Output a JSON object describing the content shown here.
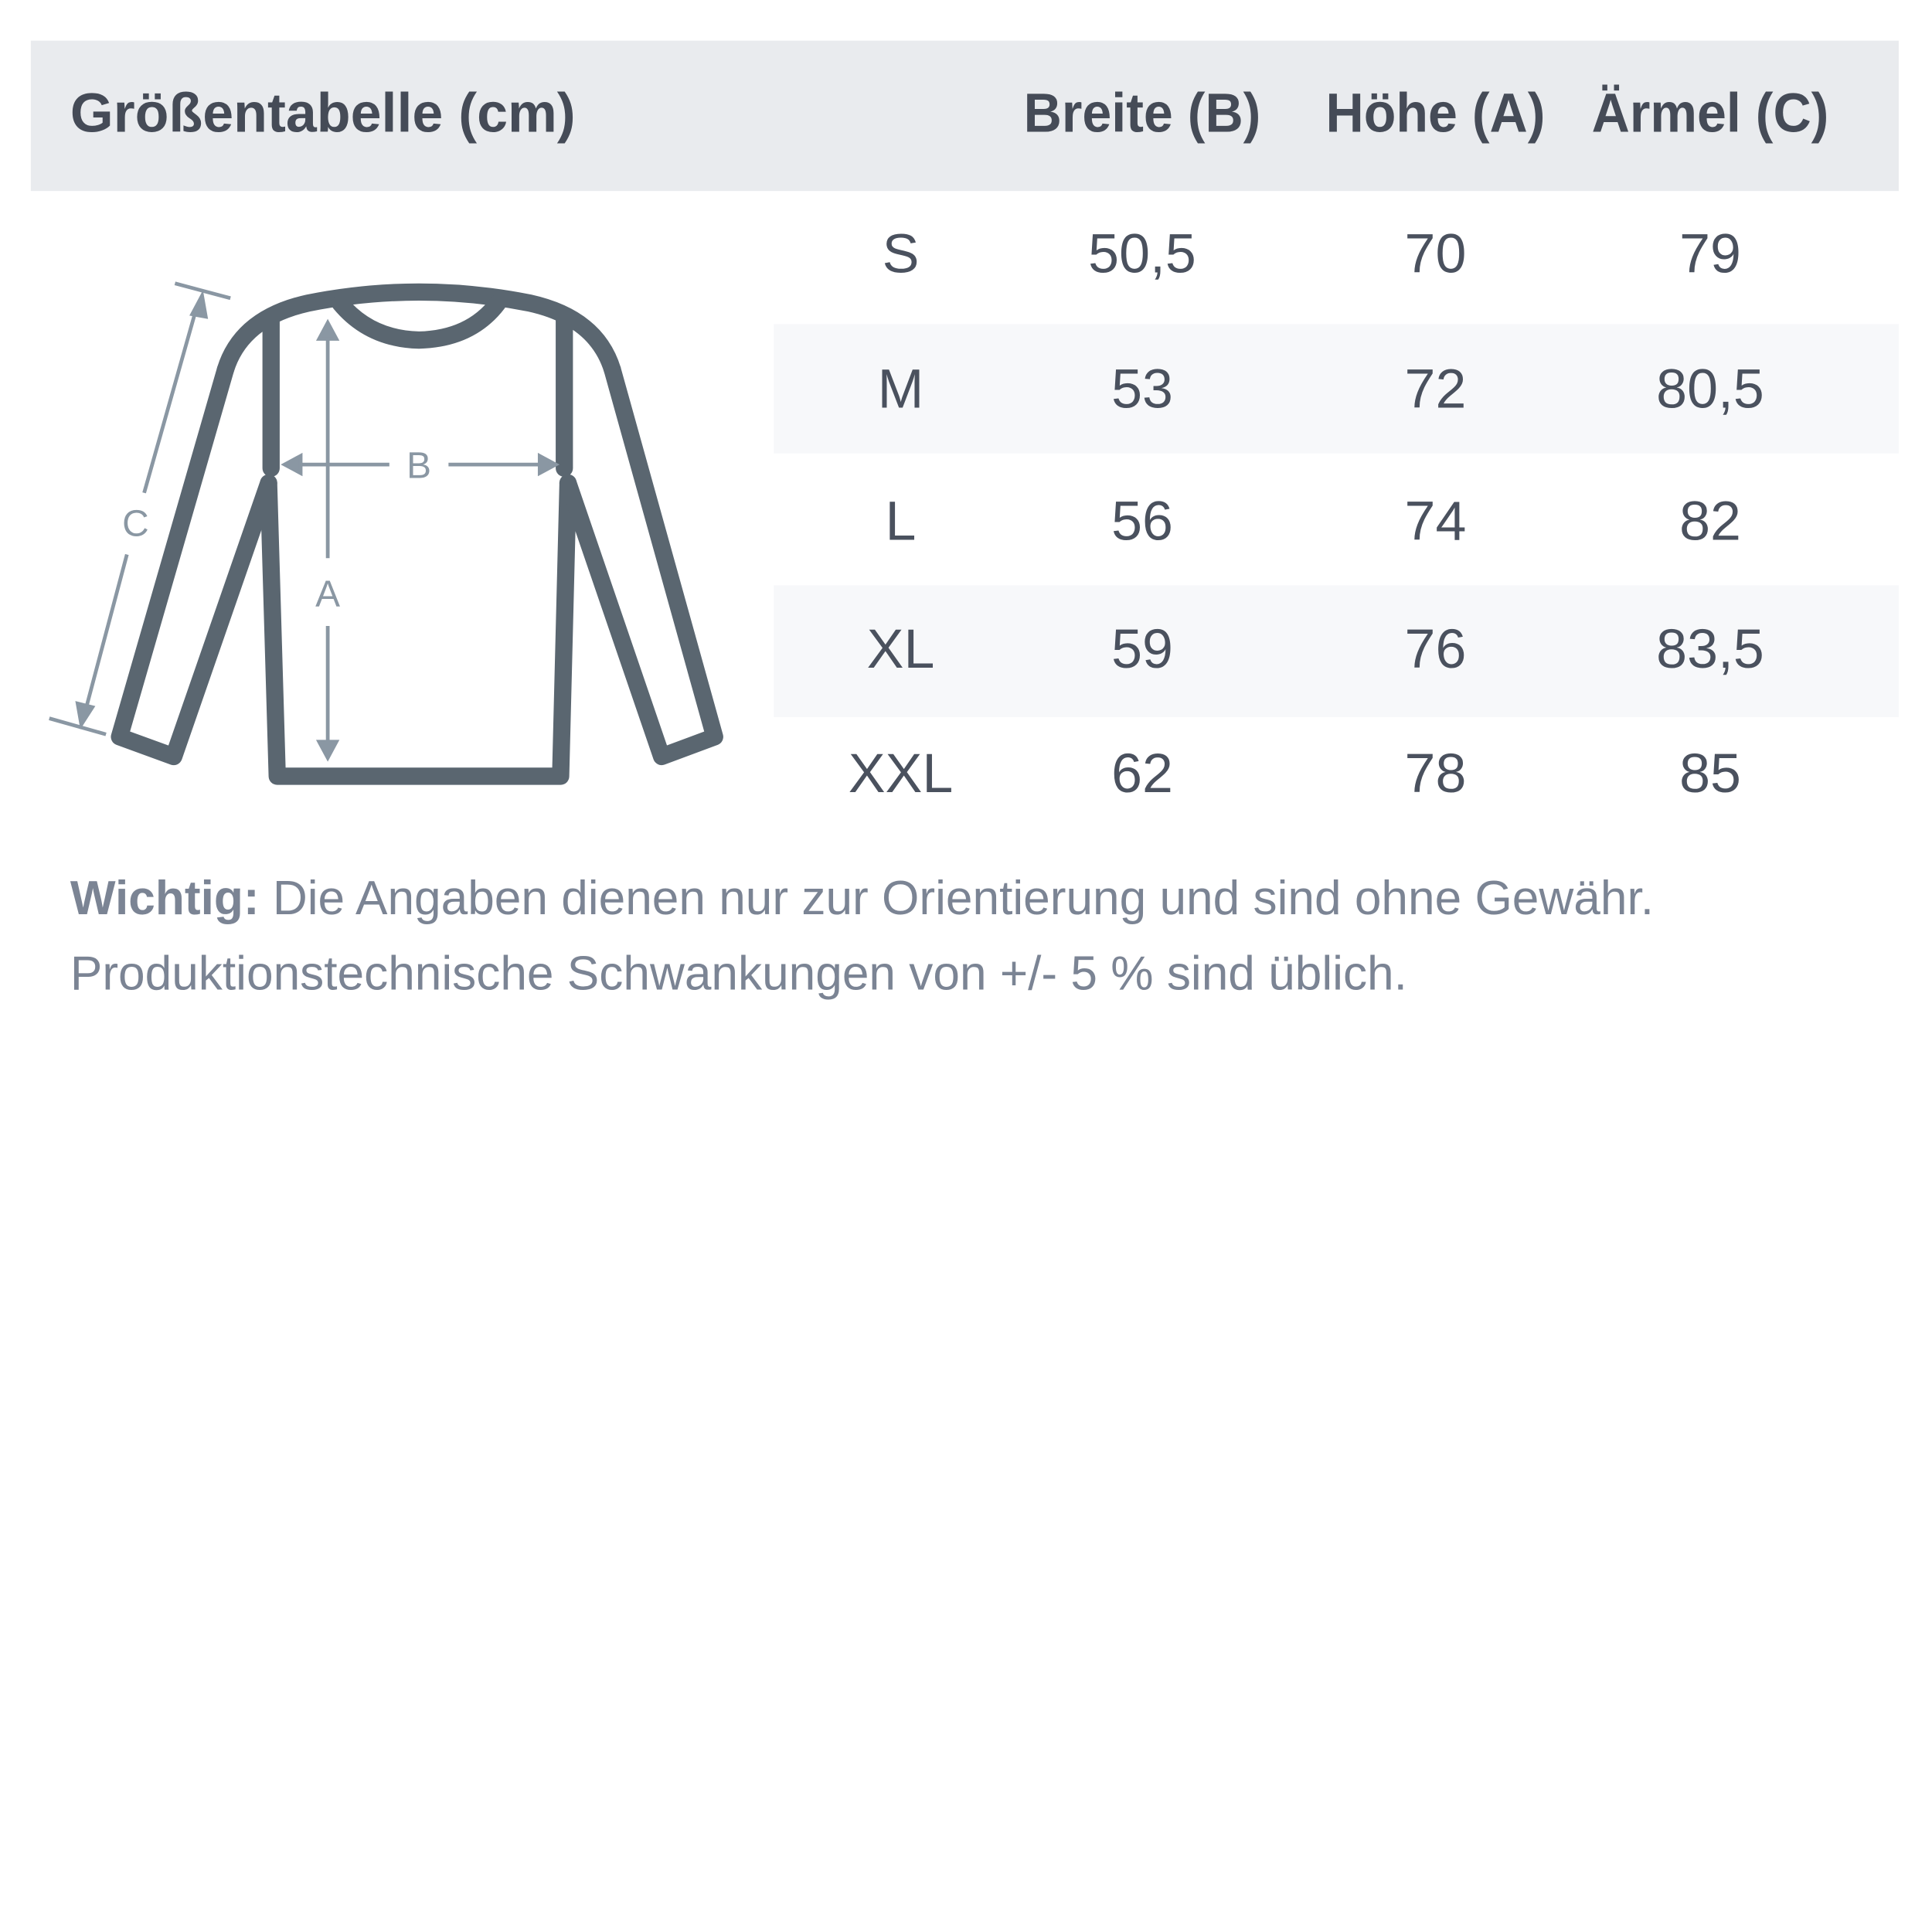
{
  "title": "Größentabelle (cm)",
  "columns": [
    "Breite (B)",
    "Höhe (A)",
    "Ärmel (C)"
  ],
  "rows": [
    {
      "size": "S",
      "values": [
        "50,5",
        "70",
        "79"
      ]
    },
    {
      "size": "M",
      "values": [
        "53",
        "72",
        "80,5"
      ]
    },
    {
      "size": "L",
      "values": [
        "56",
        "74",
        "82"
      ]
    },
    {
      "size": "XL",
      "values": [
        "59",
        "76",
        "83,5"
      ]
    },
    {
      "size": "XXL",
      "values": [
        "62",
        "78",
        "85"
      ]
    }
  ],
  "diagram": {
    "label_a": "A",
    "label_b": "B",
    "label_c": "C"
  },
  "note": {
    "bold": "Wichtig:",
    "line1": " Die Angaben dienen nur zur Orientierung und sind ohne Gewähr.",
    "line2": "Produktionstechnische Schwankungen von +/- 5 % sind üblich."
  },
  "colors": {
    "header_bg": "#e9ebee",
    "stripe_bg": "#f7f8fa",
    "text": "#4a515e",
    "shirt": "#5a6670",
    "arrows": "#8a97a3"
  }
}
